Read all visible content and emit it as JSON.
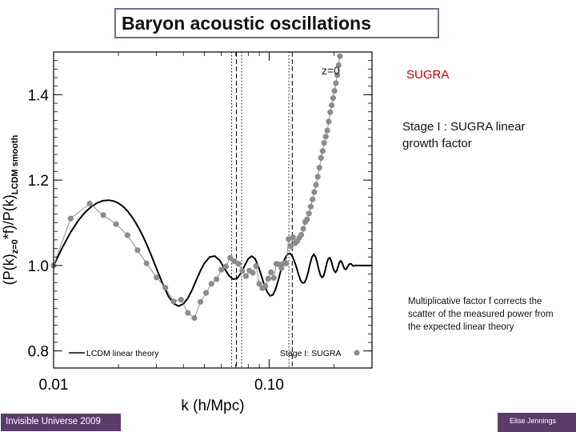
{
  "slide": {
    "title": "Baryon acoustic oscillations",
    "redshift_tag": "z=0",
    "sugra_label": "SUGRA",
    "stage_text": "Stage I : SUGRA linear growth factor",
    "note_text": "Multiplicative factor f corrects the scatter of the measured power from the expected linear theory",
    "footer_left": "Invisible Universe 2009",
    "footer_right": "Elise Jennings"
  },
  "colors": {
    "title_border": "#7a6a8a",
    "sugra_text": "#c00000",
    "footer_bg": "#5b3b6b",
    "theory_line": "#000000",
    "sim_points": "#8c8c8c"
  },
  "chart_data": {
    "type": "line",
    "xscale": "log",
    "xlim": [
      0.01,
      0.3
    ],
    "ylim": [
      0.76,
      1.5
    ],
    "xlabel": "k (h/Mpc)",
    "ylabel": "(P(k)z=0*f)/P(k)LCDM smooth",
    "x_ticks": [
      0.01,
      0.1
    ],
    "x_tick_labels": [
      "0.01",
      "0.10"
    ],
    "y_ticks": [
      0.8,
      1.0,
      1.2,
      1.4
    ],
    "y_tick_labels": [
      "0.8",
      "1.0",
      "1.2",
      "1.4"
    ],
    "vlines": [
      {
        "x": 0.067,
        "style": "dotted"
      },
      {
        "x": 0.0705,
        "style": "dashed"
      },
      {
        "x": 0.0745,
        "style": "dotted"
      },
      {
        "x": 0.1235,
        "style": "dotted"
      },
      {
        "x": 0.128,
        "style": "dashed"
      }
    ],
    "legend": "bottom",
    "series": [
      {
        "name": "LCDM linear theory",
        "kind": "line",
        "color": "#000000",
        "x": [
          0.01,
          0.011,
          0.012,
          0.013,
          0.014,
          0.015,
          0.016,
          0.017,
          0.018,
          0.019,
          0.02,
          0.021,
          0.022,
          0.023,
          0.024,
          0.025,
          0.026,
          0.027,
          0.028,
          0.029,
          0.03,
          0.032,
          0.034,
          0.036,
          0.038,
          0.04,
          0.042,
          0.044,
          0.046,
          0.048,
          0.05,
          0.053,
          0.056,
          0.059,
          0.062,
          0.065,
          0.068,
          0.071,
          0.074,
          0.077,
          0.08,
          0.083,
          0.086,
          0.089,
          0.092,
          0.095,
          0.098,
          0.101,
          0.104,
          0.107,
          0.11,
          0.113,
          0.116,
          0.119,
          0.122,
          0.125,
          0.128,
          0.131,
          0.134,
          0.137,
          0.14,
          0.143,
          0.146,
          0.149,
          0.152,
          0.155,
          0.158,
          0.161,
          0.164,
          0.167,
          0.17,
          0.173,
          0.176,
          0.179,
          0.182,
          0.185,
          0.188,
          0.191,
          0.194,
          0.197,
          0.2,
          0.203,
          0.206,
          0.209,
          0.212,
          0.215,
          0.218,
          0.221,
          0.224,
          0.227,
          0.23,
          0.235,
          0.24,
          0.245,
          0.25,
          0.26,
          0.27,
          0.28,
          0.29,
          0.3
        ],
        "y": [
          1.0,
          1.043,
          1.078,
          1.105,
          1.125,
          1.138,
          1.147,
          1.152,
          1.153,
          1.151,
          1.146,
          1.138,
          1.128,
          1.115,
          1.101,
          1.085,
          1.068,
          1.05,
          1.031,
          1.012,
          0.993,
          0.958,
          0.929,
          0.911,
          0.905,
          0.91,
          0.924,
          0.944,
          0.967,
          0.988,
          1.005,
          1.02,
          1.022,
          1.012,
          0.993,
          0.977,
          0.968,
          0.97,
          0.982,
          1.0,
          1.016,
          1.022,
          1.016,
          0.999,
          0.976,
          0.954,
          0.938,
          0.929,
          0.931,
          0.944,
          0.964,
          0.986,
          1.006,
          1.019,
          1.027,
          1.028,
          1.022,
          1.01,
          0.995,
          0.978,
          0.965,
          0.959,
          0.96,
          0.97,
          0.986,
          1.005,
          1.02,
          1.026,
          1.021,
          1.007,
          0.99,
          0.977,
          0.972,
          0.976,
          0.989,
          1.005,
          1.016,
          1.018,
          1.011,
          0.998,
          0.988,
          0.984,
          0.988,
          0.998,
          1.008,
          1.011,
          1.007,
          0.998,
          0.992,
          0.991,
          0.995,
          1.003,
          1.004,
          0.999,
          1.0,
          1.0,
          1.0,
          1.0,
          1.0,
          1.0
        ]
      },
      {
        "name": "Stage I: SUGRA",
        "kind": "points",
        "color": "#8c8c8c",
        "x": [
          0.01,
          0.012,
          0.0147,
          0.017,
          0.0195,
          0.022,
          0.0245,
          0.027,
          0.03,
          0.033,
          0.036,
          0.039,
          0.042,
          0.045,
          0.048,
          0.051,
          0.054,
          0.057,
          0.06,
          0.063,
          0.066,
          0.069,
          0.072,
          0.075,
          0.078,
          0.081,
          0.084,
          0.087,
          0.09,
          0.093,
          0.096,
          0.099,
          0.102,
          0.105,
          0.108,
          0.111,
          0.114,
          0.117,
          0.12,
          0.123,
          0.126,
          0.129,
          0.132,
          0.135,
          0.138,
          0.141,
          0.144,
          0.147,
          0.15,
          0.153,
          0.156,
          0.159,
          0.162,
          0.165,
          0.168,
          0.171,
          0.174,
          0.177,
          0.18,
          0.183,
          0.186,
          0.189,
          0.192,
          0.195,
          0.198,
          0.201,
          0.204,
          0.207,
          0.21,
          0.213
        ],
        "y": [
          1.0,
          1.11,
          1.145,
          1.118,
          1.097,
          1.071,
          1.036,
          1.005,
          0.972,
          0.948,
          0.916,
          0.92,
          0.889,
          0.877,
          0.915,
          0.936,
          0.957,
          0.968,
          0.99,
          0.998,
          1.018,
          1.01,
          1.004,
          0.987,
          0.975,
          0.988,
          0.983,
          0.999,
          0.957,
          0.947,
          0.952,
          0.969,
          0.984,
          0.971,
          1.004,
          1.003,
          0.994,
          1.005,
          1.005,
          1.062,
          1.045,
          1.066,
          1.052,
          1.057,
          1.065,
          1.072,
          1.086,
          1.102,
          1.108,
          1.122,
          1.138,
          1.155,
          1.172,
          1.189,
          1.208,
          1.229,
          1.252,
          1.268,
          1.287,
          1.302,
          1.316,
          1.337,
          1.359,
          1.375,
          1.392,
          1.409,
          1.427,
          1.446,
          1.469,
          1.49
        ]
      }
    ]
  }
}
